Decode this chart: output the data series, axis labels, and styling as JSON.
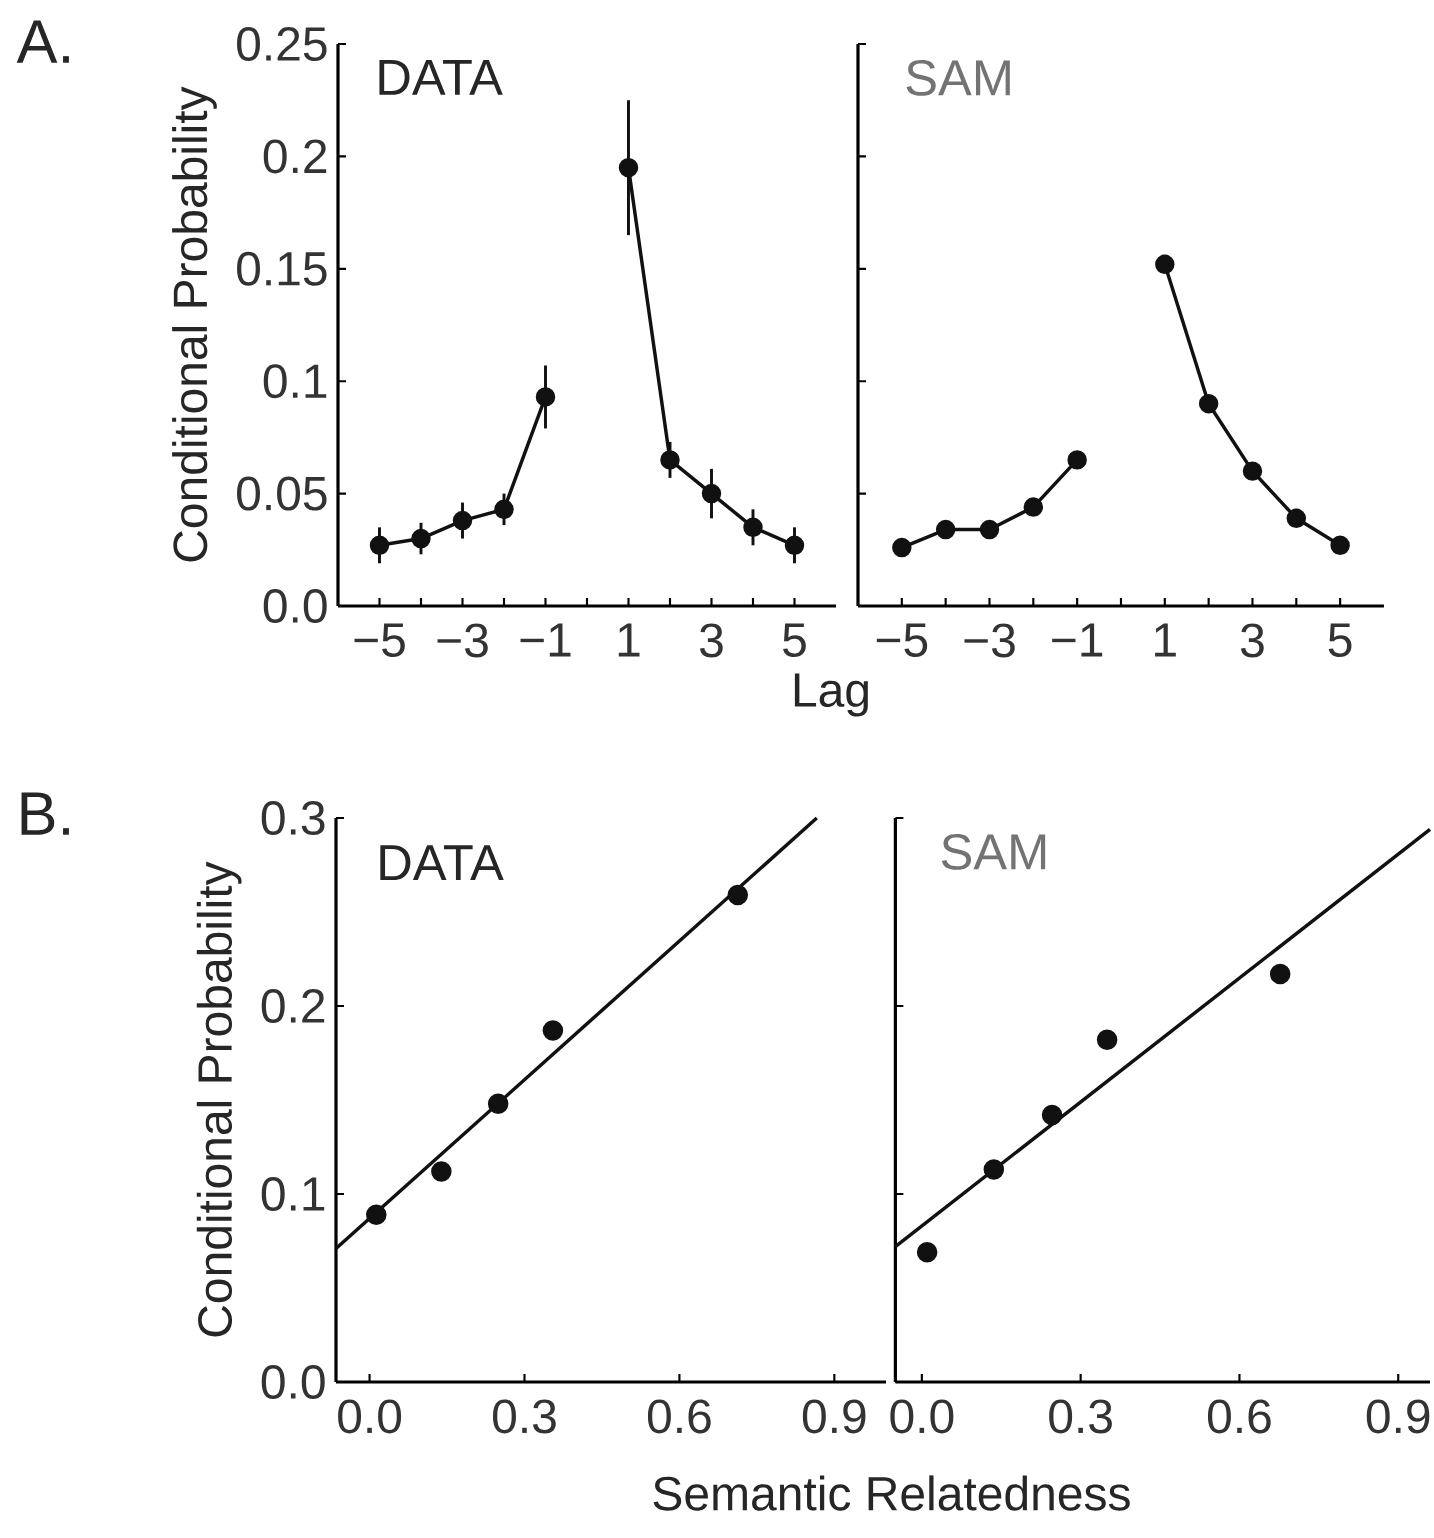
{
  "chart_data": [
    {
      "type": "line",
      "title": "DATA",
      "ylabel": "Conditional Probability",
      "xlabel": "Lag",
      "annotations": [
        "A."
      ],
      "xlim": [
        -6,
        6
      ],
      "ylim": [
        0,
        0.25
      ],
      "xticks": [
        {
          "value": -5,
          "label": "−5"
        },
        {
          "value": -4,
          "label": null
        },
        {
          "value": -3,
          "label": "−3"
        },
        {
          "value": -2,
          "label": null
        },
        {
          "value": -1,
          "label": "−1"
        },
        {
          "value": 0,
          "label": null
        },
        1,
        {
          "value": 2,
          "label": null
        },
        3,
        {
          "value": 4,
          "label": null
        },
        5
      ],
      "yticks": [
        {
          "value": 0,
          "label": "0.0"
        },
        0.05,
        0.1,
        0.15,
        0.2,
        0.25
      ],
      "marker": "circle",
      "x": [
        -5,
        -4,
        -3,
        -2,
        -1,
        0,
        1,
        2,
        3,
        4,
        5
      ],
      "series": [
        {
          "color": "#111111",
          "values": [
            0.027,
            0.03,
            0.038,
            0.043,
            0.093,
            null,
            0.195,
            0.065,
            0.05,
            0.035,
            0.027
          ],
          "errors": [
            0.008,
            0.007,
            0.008,
            0.007,
            0.014,
            null,
            0.03,
            0.008,
            0.011,
            0.008,
            0.008
          ]
        }
      ]
    },
    {
      "type": "line",
      "title": "SAM",
      "xlim": [
        -6,
        6
      ],
      "ylim": [
        0,
        0.25
      ],
      "tick_labels": "x",
      "xticks": [
        {
          "value": -5,
          "label": "−5"
        },
        {
          "value": -4,
          "label": null
        },
        {
          "value": -3,
          "label": "−3"
        },
        {
          "value": -2,
          "label": null
        },
        {
          "value": -1,
          "label": "−1"
        },
        {
          "value": 0,
          "label": null
        },
        1,
        {
          "value": 2,
          "label": null
        },
        3,
        {
          "value": 4,
          "label": null
        },
        5
      ],
      "yticks": [
        0,
        0.05,
        0.1,
        0.15,
        0.2,
        0.25
      ],
      "marker": "circle",
      "x": [
        -5,
        -4,
        -3,
        -2,
        -1,
        0,
        1,
        2,
        3,
        4,
        5
      ],
      "series": [
        {
          "color": "#111111",
          "values": [
            0.026,
            0.034,
            0.034,
            0.044,
            0.065,
            null,
            0.152,
            0.09,
            0.06,
            0.039,
            0.027
          ]
        }
      ]
    },
    {
      "type": "scatter",
      "title": "DATA",
      "ylabel": "Conditional Probability",
      "xlabel": "Semantic Relatedness",
      "annotations": [
        "B."
      ],
      "xlim": [
        -0.065,
        1.0
      ],
      "ylim": [
        0,
        0.3
      ],
      "xticks": [
        {
          "value": 0,
          "label": "0.0"
        },
        0.3,
        0.6,
        0.9
      ],
      "yticks": [
        {
          "value": 0,
          "label": "0.0"
        },
        0.1,
        0.2,
        0.3
      ],
      "marker": "circle",
      "series": [
        {
          "type": "scatter",
          "color": "#111111",
          "x": [
            0.013,
            0.139,
            0.249,
            0.355,
            0.713
          ],
          "values": [
            0.089,
            0.112,
            0.148,
            0.187,
            0.259
          ]
        },
        {
          "type": "line",
          "marker": "none",
          "color": "#111111",
          "x": [
            -0.065,
            0.866
          ],
          "values": [
            0.071,
            0.3
          ]
        }
      ]
    },
    {
      "type": "scatter",
      "title": "SAM",
      "xlim": [
        -0.05,
        0.96
      ],
      "ylim": [
        0,
        0.3
      ],
      "tick_labels": "x",
      "xticks": [
        {
          "value": 0,
          "label": "0.0"
        },
        0.3,
        0.6,
        0.9
      ],
      "yticks": [
        0,
        0.1,
        0.2,
        0.3
      ],
      "marker": "circle",
      "series": [
        {
          "type": "scatter",
          "color": "#111111",
          "x": [
            0.01,
            0.136,
            0.246,
            0.35,
            0.677
          ],
          "values": [
            0.069,
            0.113,
            0.142,
            0.182,
            0.217
          ]
        },
        {
          "type": "line",
          "marker": "none",
          "color": "#111111",
          "x": [
            -0.05,
            0.96
          ],
          "values": [
            0.072,
            0.294
          ]
        }
      ]
    }
  ]
}
